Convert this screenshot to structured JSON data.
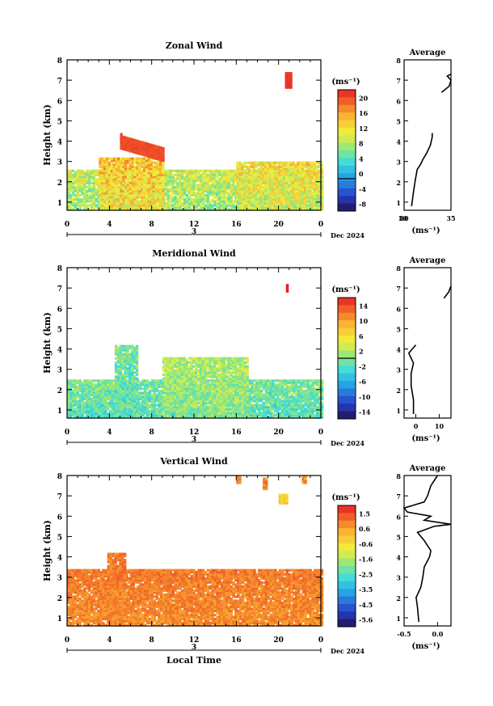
{
  "chart_data": [
    {
      "type": "heatmap",
      "title": "Zonal Wind",
      "ylabel": "Height (km)",
      "xlabel": "",
      "xlim": [
        0,
        24
      ],
      "ylim": [
        0.6,
        8
      ],
      "xticks": [
        "0",
        "4",
        "8",
        "12",
        "16",
        "20",
        "0"
      ],
      "yticks": [
        "1",
        "2",
        "3",
        "4",
        "5",
        "6",
        "7",
        "8"
      ],
      "date_label": "3",
      "month_label": "Dec 2024",
      "colorbar": {
        "unit": "(ms⁻¹)",
        "min": -8,
        "max": 22,
        "ticks": [
          "20",
          "16",
          "12",
          "8",
          "4",
          "0",
          "-4",
          "-8"
        ],
        "zero_line": 0
      },
      "base": 8,
      "spread": 4,
      "bands": [
        {
          "x0": 0,
          "x1": 24,
          "ytop": 2.6,
          "bias": 0
        },
        {
          "x0": 3,
          "x1": 9,
          "ytop": 3.2,
          "bias": 4
        },
        {
          "x0": 16,
          "x1": 24,
          "ytop": 3.0,
          "bias": 2
        }
      ],
      "patches": [
        {
          "x0": 20.6,
          "x1": 21.1,
          "y0": 6.6,
          "y1": 7.3,
          "v": 21
        },
        {
          "x0": 5.0,
          "x1": 9.0,
          "y0": 3.6,
          "y1": 4.3,
          "v": 20,
          "slope": -0.15
        }
      ],
      "avg": {
        "title": "Average",
        "xlim": [
          10,
          35
        ],
        "xticks": [
          "10",
          "10",
          "35"
        ],
        "unit": "(ms⁻¹)",
        "profile": [
          [
            14,
            0.8
          ],
          [
            15,
            1.5
          ],
          [
            16,
            2.1
          ],
          [
            17,
            2.6
          ],
          [
            19,
            2.9
          ],
          [
            20,
            3.1
          ],
          [
            22,
            3.4
          ],
          [
            24,
            3.8
          ],
          [
            25,
            4.2
          ],
          [
            25,
            4.4
          ]
        ],
        "profile2": [
          [
            30,
            6.4
          ],
          [
            34,
            6.7
          ],
          [
            35,
            7.0
          ],
          [
            33,
            7.2
          ],
          [
            35,
            7.3
          ]
        ]
      }
    },
    {
      "type": "heatmap",
      "title": "Meridional Wind",
      "ylabel": "Height (km)",
      "xlabel": "",
      "xlim": [
        0,
        24
      ],
      "ylim": [
        0.6,
        8
      ],
      "xticks": [
        "0",
        "4",
        "8",
        "12",
        "16",
        "20",
        "0"
      ],
      "yticks": [
        "1",
        "2",
        "3",
        "4",
        "5",
        "6",
        "7",
        "8"
      ],
      "date_label": "3",
      "month_label": "Dec 2024",
      "colorbar": {
        "unit": "(ms⁻¹)",
        "min": -16,
        "max": 16,
        "ticks": [
          "14",
          "10",
          "6",
          "2",
          "-2",
          "-6",
          "-10",
          "-14"
        ],
        "zero_line": 0
      },
      "base": 0,
      "spread": 3,
      "bands": [
        {
          "x0": 0,
          "x1": 24,
          "ytop": 2.5,
          "bias": -2
        },
        {
          "x0": 9,
          "x1": 17,
          "ytop": 3.6,
          "bias": 0
        },
        {
          "x0": 4.5,
          "x1": 6.5,
          "ytop": 4.2,
          "bias": -2
        }
      ],
      "patches": [
        {
          "x0": 20.7,
          "x1": 20.9,
          "y0": 6.8,
          "y1": 7.1,
          "v": 16
        }
      ],
      "avg": {
        "title": "Average",
        "xlim": [
          -5,
          15
        ],
        "xticks": [
          "0",
          "10"
        ],
        "unit": "(ms⁻¹)",
        "profile": [
          [
            -1,
            0.8
          ],
          [
            -1,
            1.5
          ],
          [
            -2,
            2.2
          ],
          [
            -2,
            2.8
          ],
          [
            -1,
            3.3
          ],
          [
            -3,
            3.8
          ],
          [
            0,
            4.2
          ]
        ],
        "profile2": [
          [
            12,
            6.5
          ],
          [
            14,
            6.8
          ],
          [
            15,
            7.1
          ]
        ]
      }
    },
    {
      "type": "heatmap",
      "title": "Vertical Wind",
      "ylabel": "Height (km)",
      "xlabel": "Local Time",
      "xlim": [
        0,
        24
      ],
      "ylim": [
        0.6,
        8
      ],
      "xticks": [
        "0",
        "4",
        "8",
        "12",
        "16",
        "20",
        "0"
      ],
      "yticks": [
        "1",
        "2",
        "3",
        "4",
        "5",
        "6",
        "7",
        "8"
      ],
      "date_label": "3",
      "month_label": "Dec 2024",
      "colorbar": {
        "unit": "(ms⁻¹)",
        "min": -6.0,
        "max": 2.0,
        "ticks": [
          "1.5",
          "0.6",
          "-0.6",
          "-1.6",
          "-2.5",
          "-3.5",
          "-4.5",
          "-5.6"
        ],
        "zero_line": null
      },
      "base": 0.7,
      "spread": 0.4,
      "bands": [
        {
          "x0": 0,
          "x1": 24,
          "ytop": 3.4,
          "bias": 0
        },
        {
          "x0": 3.8,
          "x1": 5.5,
          "ytop": 4.2,
          "bias": 0
        }
      ],
      "patches": [
        {
          "x0": 16,
          "x1": 16.3,
          "y0": 7.6,
          "y1": 7.9,
          "v": 0.9
        },
        {
          "x0": 18.5,
          "x1": 18.8,
          "y0": 7.3,
          "y1": 7.8,
          "v": 0.8
        },
        {
          "x0": 20.0,
          "x1": 20.8,
          "y0": 6.6,
          "y1": 7.0,
          "v": -0.2
        },
        {
          "x0": 22.2,
          "x1": 22.6,
          "y0": 7.6,
          "y1": 7.9,
          "v": 0.6
        }
      ],
      "avg": {
        "title": "Average",
        "xlim": [
          -0.5,
          0.2
        ],
        "xticks": [
          "-0.5",
          "0.0"
        ],
        "unit": "(ms⁻¹)",
        "profile": [
          [
            -0.28,
            0.8
          ],
          [
            -0.3,
            1.5
          ],
          [
            -0.32,
            2.0
          ],
          [
            -0.25,
            2.5
          ],
          [
            -0.22,
            3.0
          ],
          [
            -0.2,
            3.5
          ],
          [
            -0.12,
            4.0
          ],
          [
            -0.1,
            4.3
          ],
          [
            -0.2,
            4.8
          ],
          [
            -0.3,
            5.2
          ],
          [
            -0.05,
            5.5
          ],
          [
            0.2,
            5.6
          ],
          [
            -0.2,
            5.8
          ],
          [
            -0.1,
            6.0
          ],
          [
            -0.45,
            6.2
          ],
          [
            -0.5,
            6.4
          ],
          [
            -0.2,
            6.7
          ],
          [
            -0.15,
            7.0
          ],
          [
            -0.1,
            7.5
          ],
          [
            0.0,
            8.0
          ]
        ],
        "profile2": []
      }
    }
  ]
}
